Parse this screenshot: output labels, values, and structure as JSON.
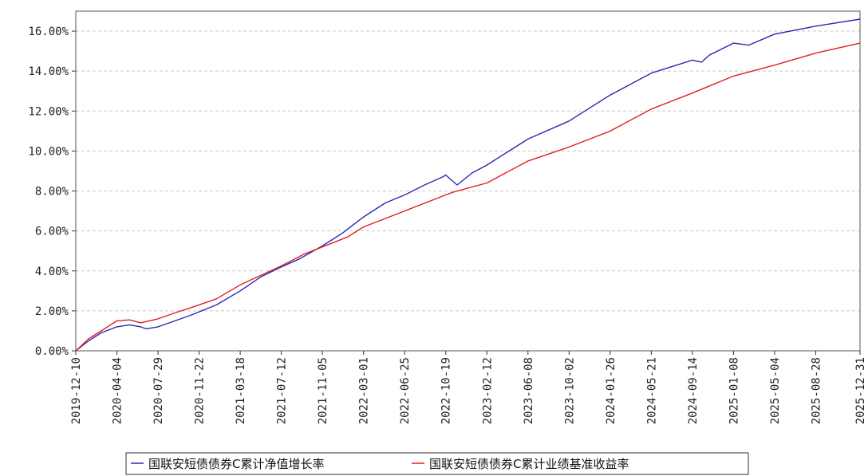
{
  "chart_data": {
    "type": "line",
    "title": "",
    "xlabel": "",
    "ylabel": "",
    "ylim": [
      0,
      17.0
    ],
    "xlim": [
      "2019-12-10",
      "2025-12-31"
    ],
    "grid": true,
    "legend_position": "bottom",
    "y_ticks": [
      "0.00%",
      "2.00%",
      "4.00%",
      "6.00%",
      "8.00%",
      "10.00%",
      "12.00%",
      "14.00%",
      "16.00%"
    ],
    "x_ticks": [
      "2019-12-10",
      "2020-04-04",
      "2020-07-29",
      "2020-11-22",
      "2021-03-18",
      "2021-07-12",
      "2021-11-05",
      "2022-03-01",
      "2022-06-25",
      "2022-10-19",
      "2023-02-12",
      "2023-06-08",
      "2023-10-02",
      "2024-01-26",
      "2024-05-21",
      "2024-09-14",
      "2025-01-08",
      "2025-05-04",
      "2025-08-28",
      "2025-12-31"
    ],
    "series": [
      {
        "name": "国联安短债债券C累计净值增长率",
        "color": "#2a2ab4",
        "x": [
          "2019-12-10",
          "2020-01-15",
          "2020-02-20",
          "2020-04-04",
          "2020-05-10",
          "2020-06-10",
          "2020-06-25",
          "2020-07-29",
          "2020-09-15",
          "2020-11-01",
          "2020-11-22",
          "2021-01-10",
          "2021-03-18",
          "2021-05-15",
          "2021-07-12",
          "2021-09-01",
          "2021-11-05",
          "2022-01-01",
          "2022-03-01",
          "2022-05-01",
          "2022-06-25",
          "2022-08-20",
          "2022-10-10",
          "2022-10-19",
          "2022-11-20",
          "2023-01-01",
          "2023-02-12",
          "2023-06-08",
          "2023-10-02",
          "2024-01-26",
          "2024-05-21",
          "2024-09-14",
          "2024-10-10",
          "2024-11-01",
          "2025-01-08",
          "2025-02-20",
          "2025-05-04",
          "2025-08-28",
          "2025-12-31"
        ],
        "values": [
          0.0,
          0.5,
          0.9,
          1.2,
          1.3,
          1.2,
          1.1,
          1.2,
          1.5,
          1.8,
          1.95,
          2.3,
          3.0,
          3.7,
          4.2,
          4.6,
          5.25,
          5.9,
          6.7,
          7.4,
          7.8,
          8.3,
          8.7,
          8.8,
          8.3,
          8.9,
          9.3,
          10.6,
          11.5,
          12.8,
          13.9,
          14.55,
          14.45,
          14.8,
          15.4,
          15.3,
          15.85,
          16.25,
          16.6
        ]
      },
      {
        "name": "国联安短债债券C累计业绩基准收益率",
        "color": "#e02020",
        "x": [
          "2019-12-10",
          "2020-01-15",
          "2020-02-20",
          "2020-04-04",
          "2020-05-10",
          "2020-06-10",
          "2020-07-29",
          "2020-09-15",
          "2020-11-22",
          "2021-01-10",
          "2021-03-18",
          "2021-07-12",
          "2021-09-15",
          "2021-11-05",
          "2022-01-15",
          "2022-03-01",
          "2022-06-25",
          "2022-10-19",
          "2022-11-10",
          "2023-02-12",
          "2023-06-08",
          "2023-10-02",
          "2024-01-26",
          "2024-05-21",
          "2024-09-14",
          "2025-01-08",
          "2025-05-04",
          "2025-08-28",
          "2025-12-31"
        ],
        "values": [
          0.0,
          0.6,
          1.0,
          1.5,
          1.55,
          1.4,
          1.6,
          1.9,
          2.3,
          2.6,
          3.3,
          4.25,
          4.85,
          5.2,
          5.7,
          6.2,
          7.0,
          7.8,
          7.95,
          8.4,
          9.5,
          10.2,
          11.0,
          12.1,
          12.9,
          13.75,
          14.3,
          14.9,
          15.4
        ]
      }
    ]
  }
}
